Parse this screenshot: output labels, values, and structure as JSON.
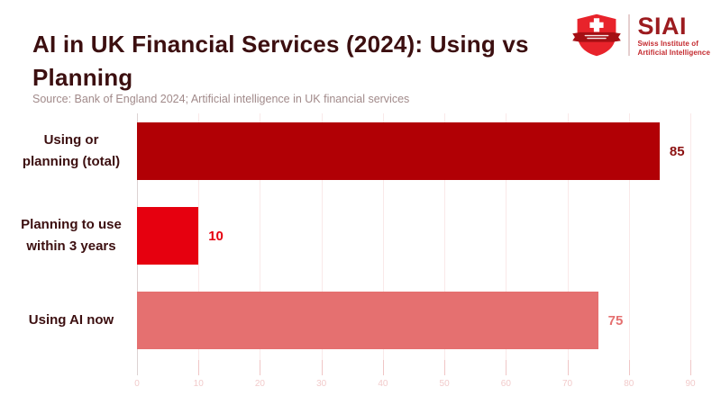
{
  "header": {
    "title": "AI in UK Financial Services (2024): Using vs Planning"
  },
  "logo": {
    "acronym": "SIAI",
    "line1": "Swiss Institute of",
    "line2": "Artificial Intelligence",
    "shield_color": "#E8232B",
    "ribbon_color": "#A50F14"
  },
  "source": "Source: Bank of England 2024; Artificial intelligence in UK financial services",
  "chart_data": {
    "type": "bar",
    "orientation": "horizontal",
    "title": "AI in UK Financial Services (2024): Using vs Planning",
    "categories": [
      "Using or planning (total)",
      "Planning to use within 3 years",
      "Using AI now"
    ],
    "values": [
      85,
      10,
      75
    ],
    "bar_colors": [
      "#B10005",
      "#E6000F",
      "#E57070"
    ],
    "value_label_colors": [
      "#8C1212",
      "#E6000F",
      "#E57070"
    ],
    "xlabel": "",
    "ylabel": "",
    "xlim": [
      0,
      90
    ],
    "xticks": [
      0,
      10,
      20,
      30,
      40,
      50,
      60,
      70,
      80,
      90
    ],
    "grid": true,
    "legend": false,
    "gridline_color": "#FAE9E9",
    "zero_line_color": "#DCD2D2",
    "tick_color": "#F0C6C6",
    "tick_label_color": "#F2CBCB"
  }
}
